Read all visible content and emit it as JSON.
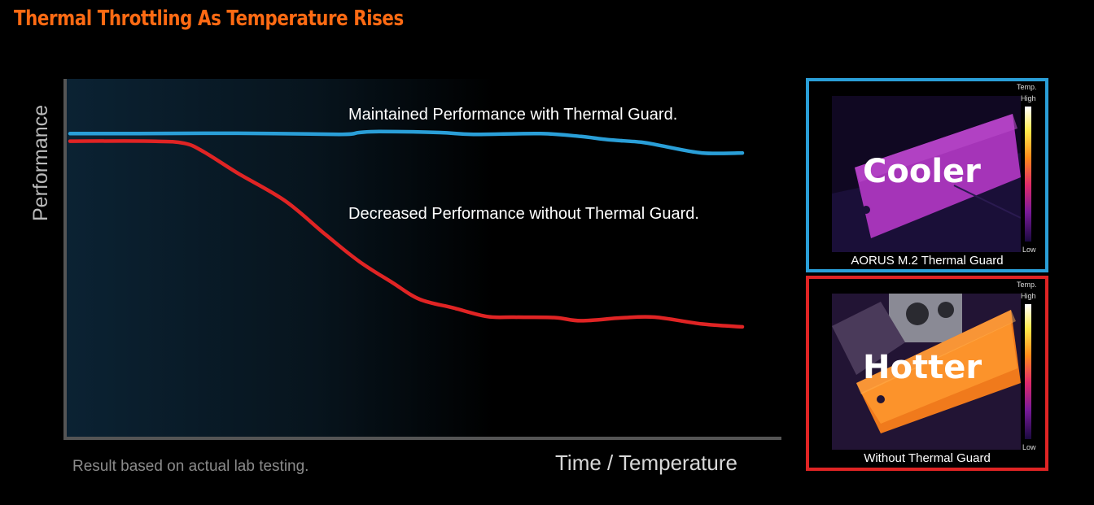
{
  "title": "Thermal Throttling As Temperature Rises",
  "footnote": "Result based on actual lab testing.",
  "colors": {
    "title": "#ff6a13",
    "with_guard": "#2a9fd8",
    "without_guard": "#e02424",
    "axis": "#555555"
  },
  "chart_data": {
    "type": "line",
    "xlabel": "Time / Temperature",
    "ylabel": "Performance",
    "xlim": [
      0,
      100
    ],
    "ylim": [
      0,
      100
    ],
    "grid": false,
    "series": [
      {
        "name": "Maintained Performance with Thermal Guard.",
        "x": [
          0,
          10,
          25,
          40,
          43,
          46,
          55,
          60,
          70,
          76,
          80,
          85,
          88,
          94,
          100
        ],
        "values": [
          84.7,
          84.7,
          84.8,
          84.5,
          85.0,
          85.3,
          85.0,
          84.5,
          84.7,
          83.9,
          83.0,
          82.3,
          81.3,
          79.3,
          79.3
        ]
      },
      {
        "name": "Decreased Performance without Thermal Guard.",
        "x": [
          0,
          12,
          17,
          20,
          25,
          32,
          38,
          43,
          48,
          52,
          57,
          62,
          66,
          72,
          76,
          82,
          87,
          94,
          100
        ],
        "values": [
          82.6,
          82.6,
          82.0,
          79.5,
          73.6,
          65.9,
          56.5,
          49.0,
          43.0,
          38.4,
          36.0,
          33.6,
          33.4,
          33.3,
          32.4,
          33.2,
          33.4,
          31.5,
          30.7
        ]
      }
    ]
  },
  "panels": {
    "cooler": {
      "word": "Cooler",
      "caption": "AORUS M.2 Thermal Guard",
      "scale_temp": "Temp.",
      "scale_high": "High",
      "scale_low": "Low"
    },
    "hotter": {
      "word": "Hotter",
      "caption": "Without Thermal Guard",
      "scale_temp": "Temp.",
      "scale_high": "High",
      "scale_low": "Low"
    }
  }
}
